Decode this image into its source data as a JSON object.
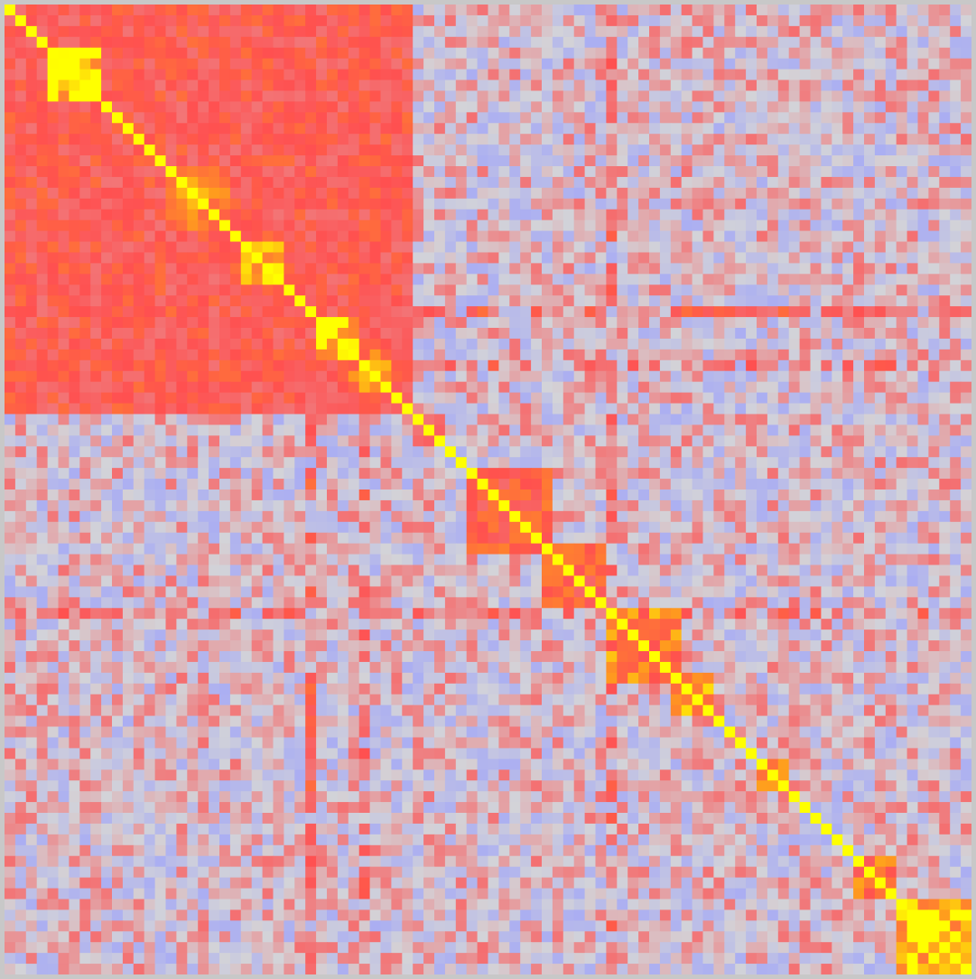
{
  "chart_data": {
    "type": "heatmap",
    "title": "",
    "xlabel": "",
    "ylabel": "",
    "n": 90,
    "value_range": [
      -1,
      1
    ],
    "diagonal_value": 1,
    "color_scale": {
      "negative": "#a6aaf5",
      "neutral": "#d3d3d8",
      "positive": "#ff5050",
      "strong": "#ff9a1e",
      "max": "#ffff00"
    },
    "blocks": [
      {
        "start": 0,
        "end": 37,
        "level": 0.55
      },
      {
        "start": 4,
        "end": 8,
        "level": 0.97
      },
      {
        "start": 15,
        "end": 20,
        "level": 0.82
      },
      {
        "start": 22,
        "end": 25,
        "level": 0.95
      },
      {
        "start": 29,
        "end": 32,
        "level": 0.97
      },
      {
        "start": 32,
        "end": 35,
        "level": 0.75
      },
      {
        "start": 38,
        "end": 40,
        "level": 0.55
      },
      {
        "start": 43,
        "end": 50,
        "level": 0.6
      },
      {
        "start": 50,
        "end": 55,
        "level": 0.6
      },
      {
        "start": 56,
        "end": 62,
        "level": 0.75
      },
      {
        "start": 62,
        "end": 65,
        "level": 0.8
      },
      {
        "start": 70,
        "end": 72,
        "level": 0.7
      },
      {
        "start": 79,
        "end": 82,
        "level": 0.7
      },
      {
        "start": 83,
        "end": 89,
        "level": 0.95
      }
    ],
    "bands": [
      {
        "index": 56,
        "level": 0.5
      },
      {
        "index": 28,
        "level": 0.55
      },
      {
        "index": 33,
        "level": 0.5
      }
    ],
    "seed": 7
  }
}
